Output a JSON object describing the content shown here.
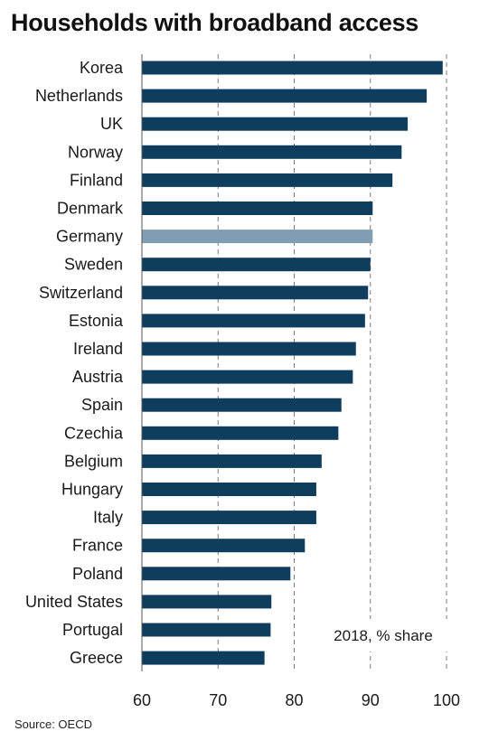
{
  "colors": {
    "bar": "#0f3d5e",
    "highlight": "#7f9db3",
    "grid": "#7a7a7a",
    "axis": "#555555"
  },
  "chart_data": {
    "type": "bar",
    "orientation": "horizontal",
    "title": "Households with broadband access",
    "note": "2018, % share",
    "source": "Source: OECD",
    "categories": [
      "Korea",
      "Netherlands",
      "UK",
      "Norway",
      "Finland",
      "Denmark",
      "Germany",
      "Sweden",
      "Switzerland",
      "Estonia",
      "Ireland",
      "Austria",
      "Spain",
      "Czechia",
      "Belgium",
      "Hungary",
      "Italy",
      "France",
      "Poland",
      "United States",
      "Portugal",
      "Greece"
    ],
    "values": [
      99.5,
      97.4,
      94.9,
      94.1,
      92.9,
      90.3,
      90.3,
      90.0,
      89.7,
      89.3,
      88.1,
      87.7,
      86.2,
      85.8,
      83.6,
      82.9,
      82.9,
      81.4,
      79.5,
      77.0,
      76.9,
      76.1
    ],
    "highlight": "Germany",
    "xlim": [
      60,
      100
    ],
    "xticks": [
      60,
      70,
      80,
      90,
      100
    ],
    "grid": "vertical dashed",
    "xlabel": "",
    "ylabel": ""
  }
}
